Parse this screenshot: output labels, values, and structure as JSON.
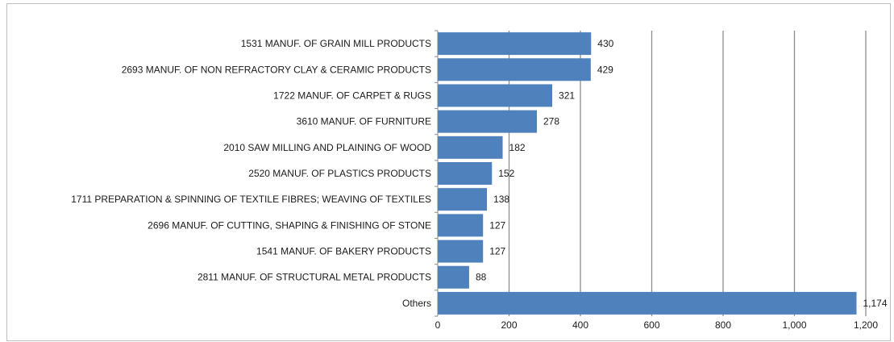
{
  "chart_data": {
    "type": "bar",
    "orientation": "horizontal",
    "categories": [
      "1531 MANUF. OF GRAIN MILL PRODUCTS",
      "2693 MANUF. OF NON REFRACTORY CLAY & CERAMIC PRODUCTS",
      "1722 MANUF. OF CARPET & RUGS",
      "3610 MANUF. OF FURNITURE",
      "2010 SAW MILLING AND PLAINING OF WOOD",
      "2520 MANUF. OF PLASTICS PRODUCTS",
      "1711 PREPARATION & SPINNING OF TEXTILE FIBRES; WEAVING OF TEXTILES",
      "2696 MANUF. OF CUTTING, SHAPING & FINISHING OF STONE",
      "1541 MANUF. OF BAKERY PRODUCTS",
      "2811 MANUF. OF STRUCTURAL METAL PRODUCTS",
      "Others"
    ],
    "values": [
      430,
      429,
      321,
      278,
      182,
      152,
      138,
      127,
      127,
      88,
      1174
    ],
    "data_labels": [
      "430",
      "429",
      "321",
      "278",
      "182",
      "152",
      "138",
      "127",
      "127",
      "88",
      "1,174"
    ],
    "xlim": [
      0,
      1200
    ],
    "xticks": [
      0,
      200,
      400,
      600,
      800,
      1000,
      1200
    ],
    "xtick_labels": [
      "0",
      "200",
      "400",
      "600",
      "800",
      "1,000",
      "1,200"
    ],
    "title": "",
    "xlabel": "",
    "ylabel": "",
    "grid": "vertical",
    "legend": "none",
    "bar_color": "#4f81bd",
    "grid_color": "#8c8c8c"
  }
}
